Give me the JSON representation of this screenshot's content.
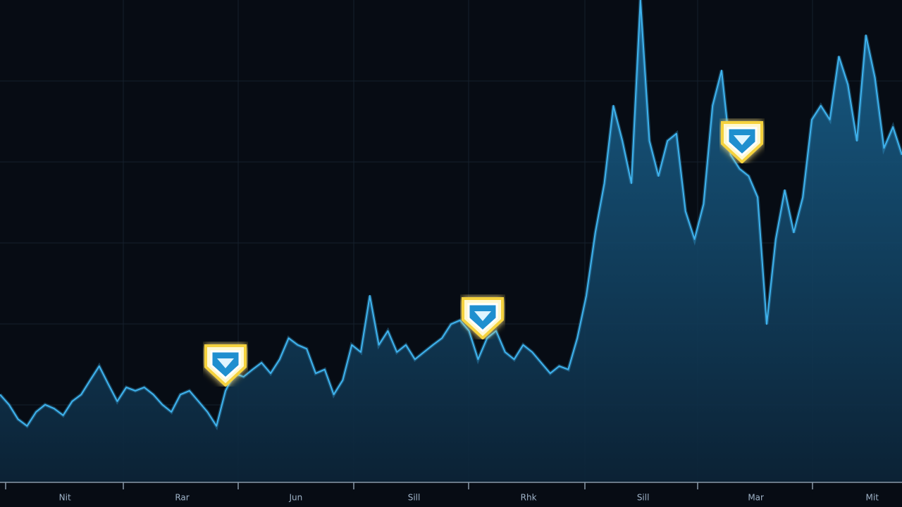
{
  "chart_data": {
    "type": "line",
    "x": [
      0,
      1,
      2,
      3,
      4,
      5,
      6,
      7,
      8,
      9,
      10,
      11,
      12,
      13,
      14,
      15,
      16,
      17,
      18,
      19,
      20,
      21,
      22,
      23,
      24,
      25,
      26,
      27,
      28,
      29,
      30,
      31,
      32,
      33,
      34,
      35,
      36,
      37,
      38,
      39,
      40,
      41,
      42,
      43,
      44,
      45,
      46,
      47,
      48,
      49,
      50,
      51,
      52,
      53,
      54,
      55,
      56,
      57,
      58,
      59,
      60,
      61,
      62,
      63,
      64,
      65,
      66,
      67,
      68,
      69,
      70,
      71,
      72,
      73,
      74,
      75,
      76,
      77,
      78,
      79,
      80,
      81,
      82,
      83,
      84,
      85,
      86,
      87,
      88,
      89,
      90,
      91,
      92,
      93,
      94,
      95,
      96,
      97,
      98,
      99,
      100
    ],
    "values": [
      18.2,
      16.1,
      13.1,
      11.7,
      14.6,
      16.1,
      15.3,
      13.9,
      16.8,
      18.2,
      21.2,
      24.1,
      20.4,
      16.8,
      19.7,
      19.0,
      19.7,
      18.2,
      16.1,
      14.6,
      18.2,
      19.0,
      16.8,
      14.6,
      11.7,
      19.0,
      22.6,
      21.9,
      23.4,
      24.8,
      22.6,
      25.5,
      29.9,
      28.5,
      27.7,
      22.6,
      23.4,
      18.2,
      21.2,
      28.5,
      27.0,
      38.7,
      28.5,
      31.4,
      27.0,
      28.5,
      25.5,
      27.0,
      28.5,
      29.9,
      32.8,
      33.6,
      31.4,
      25.5,
      29.9,
      31.4,
      27.0,
      25.5,
      28.5,
      27.0,
      24.8,
      22.6,
      24.1,
      23.4,
      29.9,
      38.7,
      51.8,
      62.0,
      78.1,
      70.8,
      62.0,
      100,
      70.8,
      63.5,
      70.8,
      72.3,
      56.2,
      50.4,
      57.7,
      78.1,
      85.4,
      67.9,
      65.0,
      63.5,
      59.1,
      32.8,
      50.4,
      60.6,
      51.8,
      59.1,
      75.2,
      78.1,
      75.2,
      88.3,
      82.5,
      70.8,
      92.7,
      83.9,
      69.3,
      73.7,
      67.9
    ],
    "color": "#3fb3ee",
    "xlim": [
      0,
      100
    ],
    "ylim": [
      0,
      100
    ],
    "xticks": [
      {
        "value": 7.2,
        "label": "Nit"
      },
      {
        "value": 20.2,
        "label": "Rar"
      },
      {
        "value": 32.8,
        "label": "Jun"
      },
      {
        "value": 45.9,
        "label": "Sill"
      },
      {
        "value": 58.6,
        "label": "Rhk"
      },
      {
        "value": 71.3,
        "label": "Sill"
      },
      {
        "value": 83.8,
        "label": "Mar"
      },
      {
        "value": 96.7,
        "label": "Mit"
      }
    ]
  }
}
